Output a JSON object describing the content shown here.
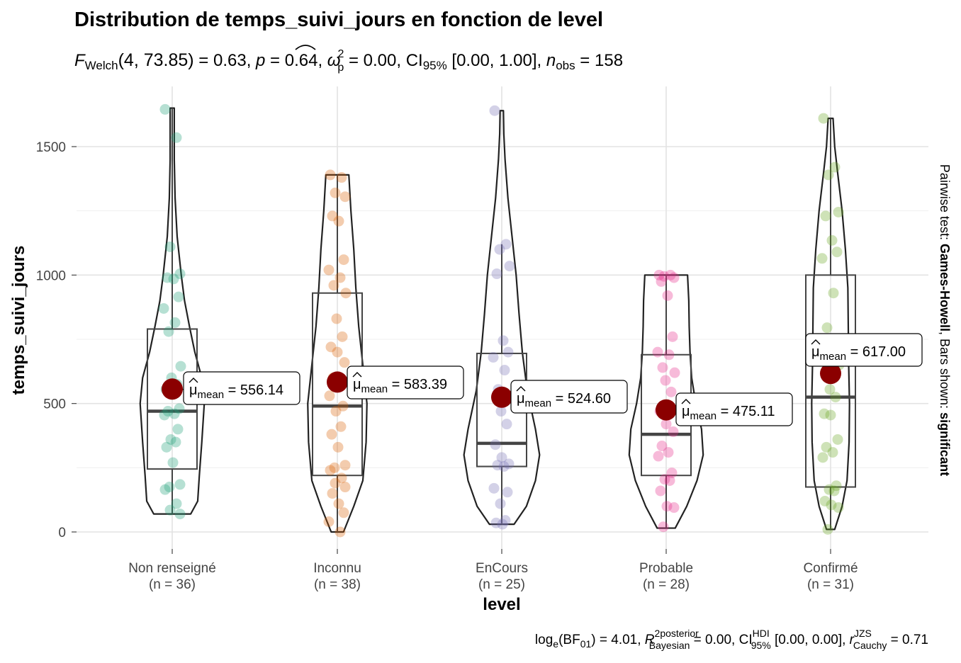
{
  "chart_data": {
    "type": "violin-box-scatter",
    "title": "Distribution de temps_suivi_jours en fonction de level",
    "subtitle": {
      "stat": "F",
      "stat_sub": "Welch",
      "args": "(4, 73.85)",
      "f_value": "= 0.63,",
      "p_label": "p",
      "p_value": "= 0.64,",
      "effect_label": "ω",
      "effect_sup": "2",
      "effect_sub": "p",
      "effect_value": "= 0.00,",
      "ci_label": "CI",
      "ci_sub": "95%",
      "ci_value": "[0.00, 1.00],",
      "n_label": "n",
      "n_sub": "obs",
      "n_value": "= 158"
    },
    "xlabel": "level",
    "ylabel": "temps_suivi_jours",
    "ylim": [
      0,
      1660
    ],
    "yticks": [
      0,
      500,
      1000,
      1500
    ],
    "grid": true,
    "side_label": {
      "prefix": "Pairwise test: ",
      "test": "Games-Howell",
      "middle": ", Bars shown: ",
      "bars": "significant"
    },
    "caption": {
      "log_label": "log",
      "log_sub": "e",
      "bf_label": "(BF",
      "bf_sub": "01",
      "bf_value": ") = 4.01,",
      "r2_label": "R",
      "r2_sup": "2",
      "r2_sup2": "posterior",
      "r2_sub": "Bayesian",
      "r2_value": "= 0.00,",
      "ci_label": "CI",
      "ci_sup": "HDI",
      "ci_sub": "95%",
      "ci_value": "[0.00, 0.00],",
      "r_label": "r",
      "r_sup": "JZS",
      "r_sub": "Cauchy",
      "r_value": "= 0.71"
    },
    "mean_label": {
      "mu": "μ",
      "sub": "mean",
      "eq": "="
    },
    "categories": [
      {
        "name": "Non renseigné",
        "n_label": "(n = 36)",
        "color": "#1B9E77",
        "mean": 556.14,
        "mean_text": "556.14",
        "box": {
          "q1": 245,
          "median": 470,
          "q3": 790,
          "lower": 70,
          "upper": 1650
        },
        "violin": {
          "min": 70,
          "max": 1650,
          "profile": [
            [
              70,
              0.45
            ],
            [
              120,
              0.62
            ],
            [
              220,
              0.66
            ],
            [
              350,
              0.72
            ],
            [
              500,
              0.78
            ],
            [
              600,
              0.72
            ],
            [
              700,
              0.55
            ],
            [
              800,
              0.42
            ],
            [
              900,
              0.3
            ],
            [
              1000,
              0.22
            ],
            [
              1150,
              0.12
            ],
            [
              1300,
              0.07
            ],
            [
              1450,
              0.05
            ],
            [
              1550,
              0.05
            ],
            [
              1650,
              0.05
            ]
          ]
        },
        "points": [
          1645,
          1535,
          1110,
          1005,
          990,
          985,
          915,
          870,
          815,
          780,
          645,
          600,
          575,
          555,
          535,
          480,
          470,
          460,
          455,
          400,
          360,
          350,
          330,
          270,
          185,
          175,
          165,
          110,
          85,
          70
        ]
      },
      {
        "name": "Inconnu",
        "n_label": "(n = 38)",
        "color": "#D95F02",
        "mean": 583.39,
        "mean_text": "583.39",
        "box": {
          "q1": 220,
          "median": 490,
          "q3": 930,
          "lower": 0,
          "upper": 1390
        },
        "violin": {
          "min": 0,
          "max": 1390,
          "profile": [
            [
              0,
              0.15
            ],
            [
              100,
              0.4
            ],
            [
              200,
              0.62
            ],
            [
              350,
              0.7
            ],
            [
              500,
              0.72
            ],
            [
              650,
              0.62
            ],
            [
              800,
              0.52
            ],
            [
              950,
              0.45
            ],
            [
              1100,
              0.4
            ],
            [
              1250,
              0.33
            ],
            [
              1390,
              0.28
            ]
          ]
        },
        "points": [
          1390,
          1380,
          1320,
          1305,
          1230,
          1210,
          1060,
          1020,
          990,
          960,
          930,
          830,
          760,
          720,
          700,
          660,
          600,
          570,
          530,
          490,
          470,
          410,
          380,
          330,
          260,
          250,
          240,
          210,
          190,
          175,
          150,
          110,
          75,
          40,
          0
        ]
      },
      {
        "name": "EnCours",
        "n_label": "(n = 25)",
        "color": "#7570B3",
        "mean": 524.6,
        "mean_text": "524.60",
        "box": {
          "q1": 255,
          "median": 345,
          "q3": 695,
          "lower": 30,
          "upper": 1120
        },
        "violin": {
          "min": 30,
          "max": 1640,
          "profile": [
            [
              30,
              0.3
            ],
            [
              100,
              0.6
            ],
            [
              200,
              0.82
            ],
            [
              300,
              0.92
            ],
            [
              400,
              0.82
            ],
            [
              550,
              0.62
            ],
            [
              700,
              0.5
            ],
            [
              850,
              0.42
            ],
            [
              1000,
              0.35
            ],
            [
              1150,
              0.25
            ],
            [
              1300,
              0.15
            ],
            [
              1450,
              0.08
            ],
            [
              1550,
              0.05
            ],
            [
              1640,
              0.04
            ]
          ]
        },
        "points": [
          1640,
          1120,
          1100,
          1035,
          1005,
          745,
          700,
          680,
          630,
          555,
          520,
          470,
          420,
          340,
          290,
          265,
          260,
          255,
          170,
          155,
          110,
          45,
          35,
          30
        ]
      },
      {
        "name": "Probable",
        "n_label": "(n = 28)",
        "color": "#E7298A",
        "mean": 475.11,
        "mean_text": "475.11",
        "box": {
          "q1": 220,
          "median": 380,
          "q3": 690,
          "lower": 15,
          "upper": 1000
        },
        "violin": {
          "min": 15,
          "max": 1000,
          "profile": [
            [
              15,
              0.22
            ],
            [
              100,
              0.5
            ],
            [
              200,
              0.75
            ],
            [
              300,
              0.9
            ],
            [
              400,
              0.86
            ],
            [
              500,
              0.72
            ],
            [
              600,
              0.62
            ],
            [
              700,
              0.58
            ],
            [
              800,
              0.56
            ],
            [
              900,
              0.55
            ],
            [
              1000,
              0.52
            ]
          ]
        },
        "points": [
          1000,
          1000,
          995,
          990,
          975,
          920,
          760,
          700,
          690,
          640,
          620,
          590,
          545,
          470,
          420,
          390,
          335,
          310,
          295,
          230,
          205,
          200,
          160,
          100,
          95,
          20
        ]
      },
      {
        "name": "Confirmé",
        "n_label": "(n = 31)",
        "color": "#66A61E",
        "mean": 617.0,
        "mean_text": "617.00",
        "box": {
          "q1": 175,
          "median": 525,
          "q3": 1000,
          "lower": 10,
          "upper": 1610
        },
        "violin": {
          "min": 10,
          "max": 1610,
          "profile": [
            [
              10,
              0.1
            ],
            [
              100,
              0.28
            ],
            [
              200,
              0.4
            ],
            [
              350,
              0.45
            ],
            [
              500,
              0.46
            ],
            [
              650,
              0.44
            ],
            [
              800,
              0.43
            ],
            [
              950,
              0.42
            ],
            [
              1100,
              0.36
            ],
            [
              1250,
              0.28
            ],
            [
              1400,
              0.17
            ],
            [
              1500,
              0.1
            ],
            [
              1610,
              0.06
            ]
          ]
        },
        "points": [
          1610,
          1420,
          1390,
          1245,
          1230,
          1135,
          1090,
          1065,
          930,
          795,
          650,
          555,
          525,
          460,
          455,
          360,
          330,
          310,
          290,
          180,
          165,
          160,
          120,
          105,
          95,
          10
        ]
      }
    ]
  }
}
